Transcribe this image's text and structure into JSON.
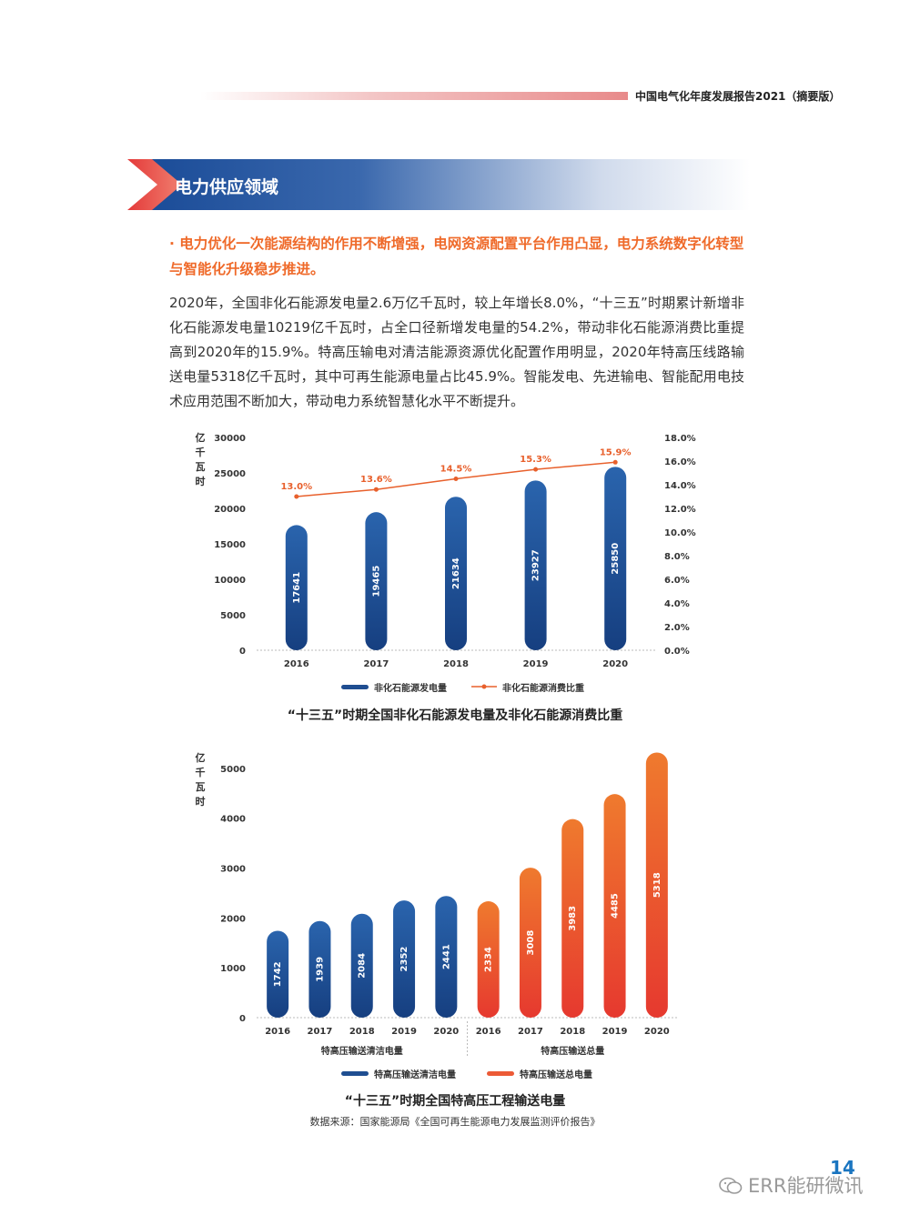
{
  "header": {
    "title": "中国电气化年度发展报告2021（摘要版）"
  },
  "section": {
    "title": "电力供应领域"
  },
  "lead": "· 电力优化一次能源结构的作用不断增强，电网资源配置平台作用凸显，电力系统数字化转型与智能化升级稳步推进。",
  "body": "2020年，全国非化石能源发电量2.6万亿千瓦时，较上年增长8.0%，“十三五”时期累计新增非化石能源发电量10219亿千瓦时，占全口径新增发电量的54.2%，带动非化石能源消费比重提高到2020年的15.9%。特高压输电对清洁能源资源优化配置作用明显，2020年特高压线路输送电量5318亿千瓦时，其中可再生能源电量占比45.9%。智能发电、先进输电、智能配用电技术应用范围不断加大，带动电力系统智慧化水平不断提升。",
  "chart_data": [
    {
      "type": "bar",
      "title": "“十三五”时期全国非化石能源发电量及非化石能源消费比重",
      "ylabel": "（亿千瓦时）",
      "categories": [
        "2016",
        "2017",
        "2018",
        "2019",
        "2020"
      ],
      "ylim": [
        0,
        30000
      ],
      "yticks": [
        "0",
        "5000",
        "10000",
        "15000",
        "20000",
        "25000",
        "30000"
      ],
      "y2lim": [
        0,
        18
      ],
      "y2ticks": [
        "0.0%",
        "2.0%",
        "4.0%",
        "6.0%",
        "8.0%",
        "10.0%",
        "12.0%",
        "14.0%",
        "16.0%",
        "18.0%"
      ],
      "legend_position": "bottom",
      "series": [
        {
          "name": "非化石能源发电量",
          "kind": "bar",
          "values": [
            17641,
            19465,
            21634,
            23927,
            25850
          ],
          "color": "#1f4e91"
        },
        {
          "name": "非化石能源消费比重",
          "kind": "line",
          "values": [
            13.0,
            13.6,
            14.5,
            15.3,
            15.9
          ],
          "labels": [
            "13.0%",
            "13.6%",
            "14.5%",
            "15.3%",
            "15.9%"
          ],
          "color": "#e8602c"
        }
      ]
    },
    {
      "type": "bar",
      "title": "“十三五”时期全国特高压工程输送电量",
      "ylabel": "（亿千瓦时）",
      "ylim": [
        0,
        5400
      ],
      "yticks": [
        "0",
        "1000",
        "2000",
        "3000",
        "4000",
        "5000"
      ],
      "legend_position": "bottom",
      "groups": [
        {
          "label": "特高压输送清洁电量",
          "categories": [
            "2016",
            "2017",
            "2018",
            "2019",
            "2020"
          ]
        },
        {
          "label": "特高压输送总量",
          "categories": [
            "2016",
            "2017",
            "2018",
            "2019",
            "2020"
          ]
        }
      ],
      "series": [
        {
          "name": "特高压输送清洁电量",
          "values": [
            1742,
            1939,
            2084,
            2352,
            2441
          ],
          "color": "#1f4e91"
        },
        {
          "name": "特高压输送总电量",
          "values": [
            2334,
            3008,
            3983,
            4485,
            5318
          ],
          "color": "#ec5a36"
        }
      ]
    }
  ],
  "source": "数据来源：国家能源局《全国可再生能源电力发展监测评价报告》",
  "page_number": "14",
  "watermark": "ERR能研微讯"
}
